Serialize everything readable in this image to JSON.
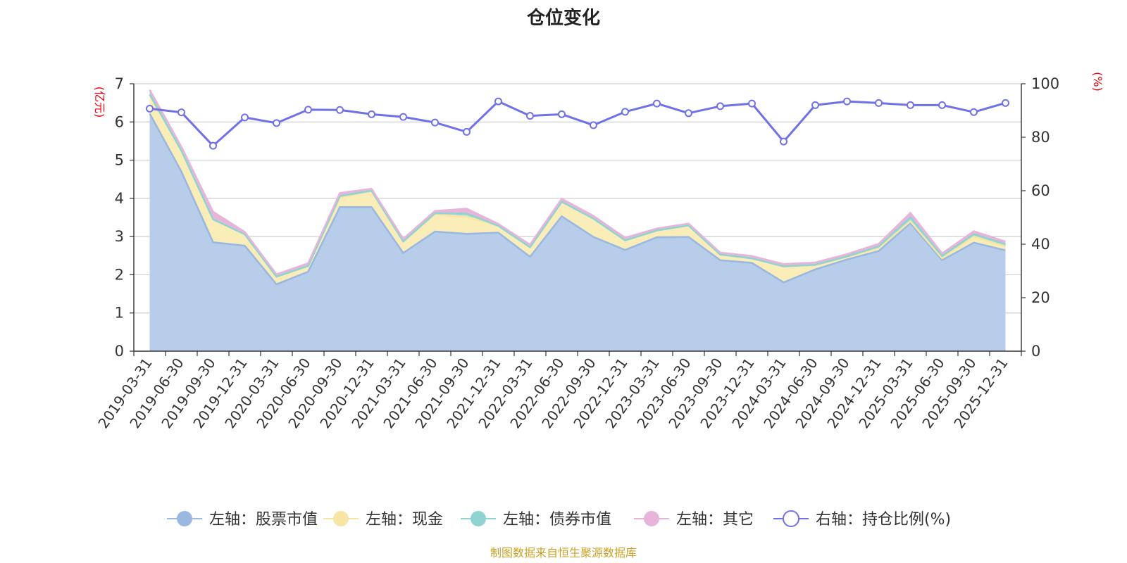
{
  "chart_data": {
    "type": "area",
    "title": "仓位变化",
    "y_left_unit": "(亿元)",
    "y_right_unit": "(%)",
    "ylim_left": [
      0,
      7
    ],
    "ylim_right": [
      0,
      100
    ],
    "yticks_left": [
      "0",
      "1",
      "2",
      "3",
      "4",
      "5",
      "6",
      "7"
    ],
    "yticks_right": [
      "0",
      "20",
      "40",
      "60",
      "80",
      "100"
    ],
    "categories": [
      "2019-03-31",
      "2019-06-30",
      "2019-09-30",
      "2019-12-31",
      "2020-03-31",
      "2020-06-30",
      "2020-09-30",
      "2020-12-31",
      "2021-03-31",
      "2021-06-30",
      "2021-09-30",
      "2021-12-31",
      "2022-03-31",
      "2022-06-30",
      "2022-09-30",
      "2022-12-31",
      "2023-03-31",
      "2023-06-30",
      "2023-09-30",
      "2023-12-31",
      "2024-03-31",
      "2024-06-30",
      "2024-09-30",
      "2024-12-31",
      "2025-03-31",
      "2025-06-30",
      "2025-09-30",
      "2025-12-31"
    ],
    "series": [
      {
        "name": "左轴：股票市值",
        "axis": "left",
        "color": "#9ab8e0",
        "fill": "#b8cdea",
        "values": [
          6.22,
          4.7,
          2.85,
          2.76,
          1.75,
          2.08,
          3.77,
          3.77,
          2.57,
          3.13,
          3.07,
          3.1,
          2.47,
          3.53,
          2.99,
          2.65,
          2.98,
          2.99,
          2.38,
          2.31,
          1.8,
          2.14,
          2.4,
          2.62,
          3.35,
          2.38,
          2.84,
          2.64
        ]
      },
      {
        "name": "左轴：现金",
        "axis": "left",
        "color": "#f7e6a3",
        "fill": "#faedb8",
        "values": [
          0.5,
          0.55,
          0.6,
          0.3,
          0.2,
          0.15,
          0.25,
          0.42,
          0.3,
          0.45,
          0.45,
          0.18,
          0.25,
          0.38,
          0.48,
          0.25,
          0.18,
          0.3,
          0.15,
          0.12,
          0.42,
          0.12,
          0.07,
          0.08,
          0.05,
          0.05,
          0.16,
          0.1
        ]
      },
      {
        "name": "左轴：债券市值",
        "axis": "left",
        "color": "#8fd3d3",
        "fill": "#a8dede",
        "values": [
          0,
          0,
          0,
          0,
          0,
          0,
          0.04,
          0.01,
          0,
          0.03,
          0.08,
          0,
          0,
          0,
          0,
          0,
          0,
          0,
          0,
          0,
          0,
          0,
          0.01,
          0.04,
          0.1,
          0.06,
          0.06,
          0.06
        ]
      },
      {
        "name": "左轴：其它",
        "axis": "left",
        "color": "#e6b5d9",
        "fill": "#e6b5d9",
        "values": [
          0.12,
          0.1,
          0.2,
          0.06,
          0.06,
          0.07,
          0.08,
          0.05,
          0.07,
          0.06,
          0.13,
          0.05,
          0.07,
          0.08,
          0.07,
          0.07,
          0.05,
          0.05,
          0.05,
          0.06,
          0.06,
          0.06,
          0.06,
          0.07,
          0.12,
          0.07,
          0.08,
          0.07
        ]
      },
      {
        "name": "右轴：持仓比例(%)",
        "axis": "right",
        "color": "#7071e8",
        "values": [
          90.7,
          89.3,
          76.8,
          87.4,
          85.3,
          90.3,
          90.2,
          88.6,
          87.6,
          85.5,
          82.0,
          93.4,
          88.0,
          88.6,
          84.5,
          89.5,
          92.6,
          89.0,
          91.6,
          92.6,
          78.4,
          92.0,
          93.4,
          92.8,
          92.0,
          92.0,
          89.4,
          92.8
        ]
      }
    ],
    "legend_position": "bottom",
    "grid": true,
    "source_note": "制图数据来自恒生聚源数据库"
  }
}
